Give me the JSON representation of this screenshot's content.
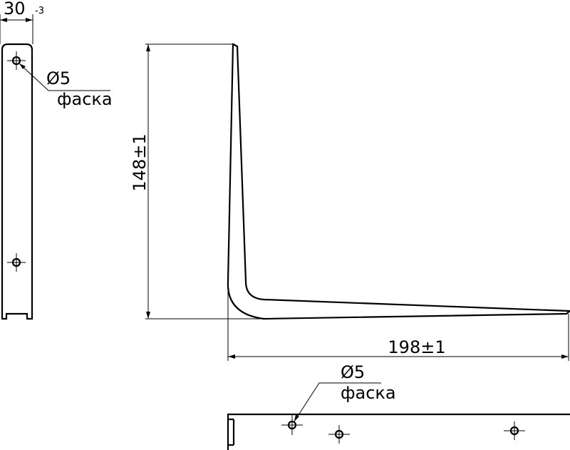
{
  "side_view": {
    "width": "30",
    "width_tolerance": "-3",
    "hole": "Ø5",
    "chamfer": "фаска"
  },
  "front_view": {
    "height": "148±1",
    "length": "198±1"
  },
  "bottom_view": {
    "hole": "Ø5",
    "chamfer": "фаска"
  }
}
